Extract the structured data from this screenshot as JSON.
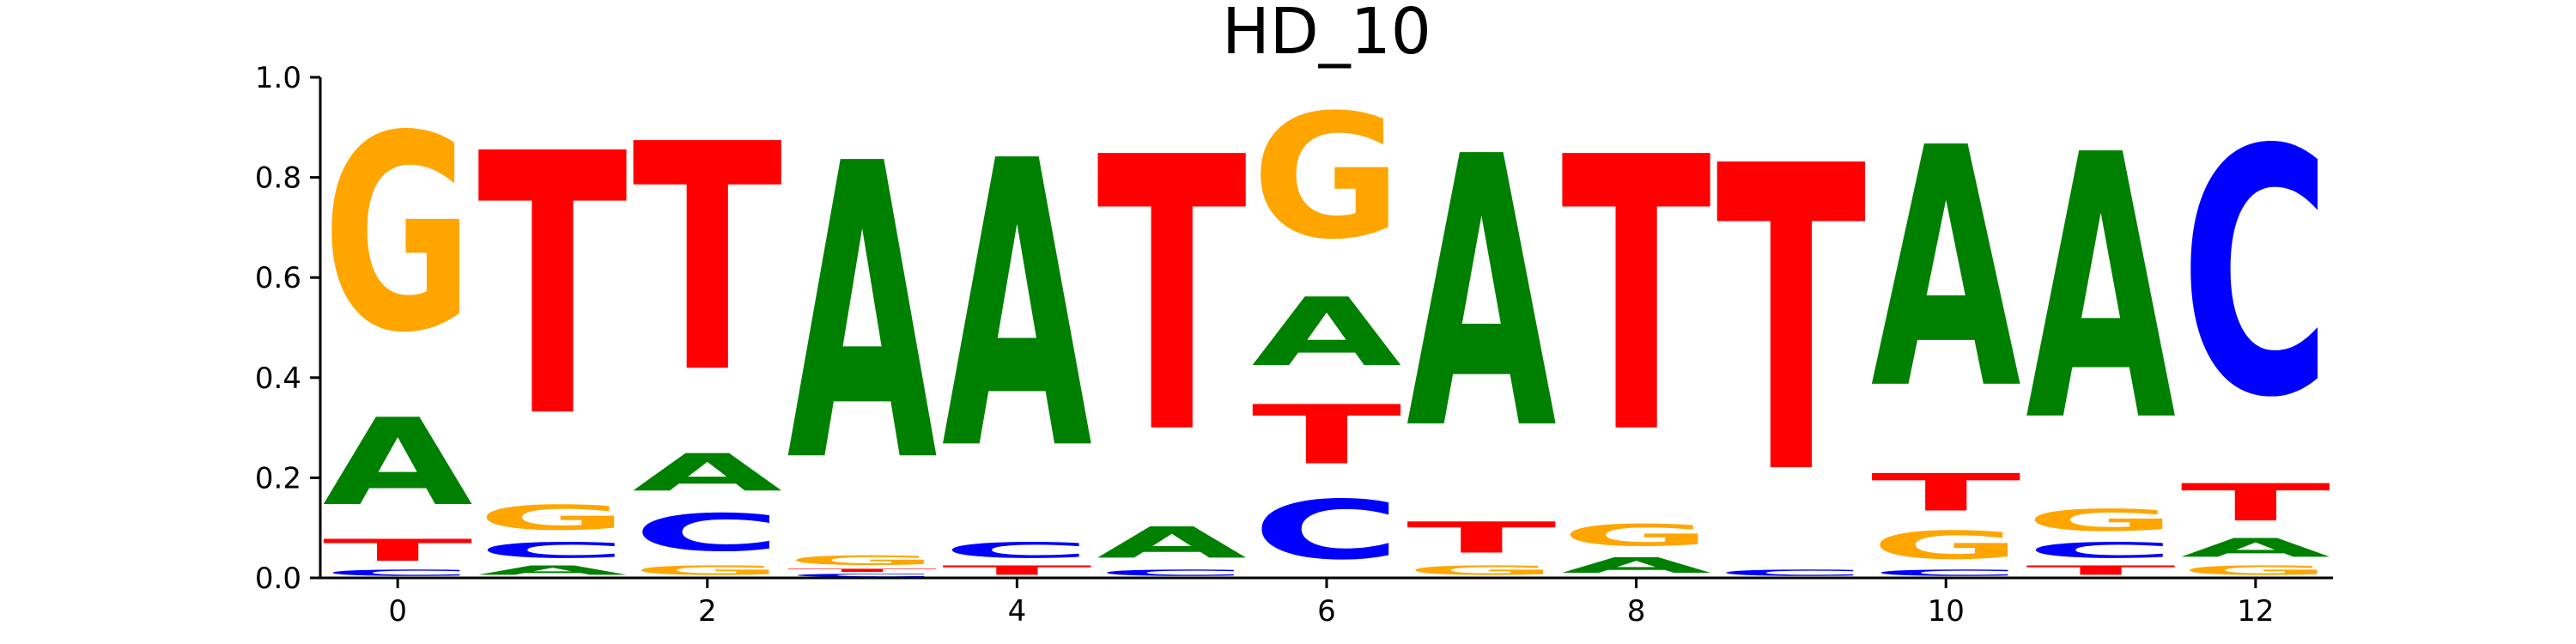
{
  "chart_data": {
    "type": "sequence-logo",
    "title": "HD_10",
    "xlabel": "",
    "ylabel": "",
    "ylim": [
      0,
      1.0
    ],
    "xlim": [
      -0.5,
      12.5
    ],
    "x_ticks": [
      0,
      2,
      4,
      6,
      8,
      10,
      12
    ],
    "y_ticks": [
      0.0,
      0.2,
      0.4,
      0.6,
      0.8,
      1.0
    ],
    "x_tick_labels": [
      "0",
      "2",
      "4",
      "6",
      "8",
      "10",
      "12"
    ],
    "y_tick_labels": [
      "0.0",
      "0.2",
      "0.4",
      "0.6",
      "0.8",
      "1.0"
    ],
    "colors": {
      "A": "#008000",
      "C": "#0000ff",
      "G": "#ffa500",
      "T": "#ff0000"
    },
    "positions": [
      {
        "pos": 0,
        "stack": [
          [
            "C",
            0.02
          ],
          [
            "T",
            0.07
          ],
          [
            "A",
            0.28
          ],
          [
            "G",
            0.63
          ]
        ]
      },
      {
        "pos": 1,
        "stack": [
          [
            "A",
            0.03
          ],
          [
            "C",
            0.05
          ],
          [
            "G",
            0.08
          ],
          [
            "T",
            0.84
          ]
        ]
      },
      {
        "pos": 2,
        "stack": [
          [
            "G",
            0.03
          ],
          [
            "C",
            0.12
          ],
          [
            "A",
            0.12
          ],
          [
            "T",
            0.73
          ]
        ]
      },
      {
        "pos": 3,
        "stack": [
          [
            "C",
            0.01
          ],
          [
            "T",
            0.01
          ],
          [
            "G",
            0.03
          ],
          [
            "A",
            0.95
          ]
        ]
      },
      {
        "pos": 4,
        "stack": [
          [
            "T",
            0.03
          ],
          [
            "C",
            0.05
          ],
          [
            "A",
            0.92
          ]
        ]
      },
      {
        "pos": 5,
        "stack": [
          [
            "C",
            0.02
          ],
          [
            "A",
            0.1
          ],
          [
            "T",
            0.88
          ]
        ]
      },
      {
        "pos": 6,
        "stack": [
          [
            "C",
            0.19
          ],
          [
            "T",
            0.19
          ],
          [
            "A",
            0.22
          ],
          [
            "G",
            0.4
          ]
        ]
      },
      {
        "pos": 7,
        "stack": [
          [
            "G",
            0.03
          ],
          [
            "T",
            0.1
          ],
          [
            "A",
            0.87
          ]
        ]
      },
      {
        "pos": 8,
        "stack": [
          [
            "A",
            0.05
          ],
          [
            "G",
            0.07
          ],
          [
            "T",
            0.88
          ]
        ]
      },
      {
        "pos": 9,
        "stack": [
          [
            "C",
            0.02
          ],
          [
            "T",
            0.98
          ]
        ]
      },
      {
        "pos": 10,
        "stack": [
          [
            "C",
            0.02
          ],
          [
            "G",
            0.09
          ],
          [
            "T",
            0.12
          ],
          [
            "A",
            0.77
          ]
        ]
      },
      {
        "pos": 11,
        "stack": [
          [
            "T",
            0.03
          ],
          [
            "C",
            0.05
          ],
          [
            "G",
            0.07
          ],
          [
            "A",
            0.85
          ]
        ]
      },
      {
        "pos": 12,
        "stack": [
          [
            "G",
            0.03
          ],
          [
            "A",
            0.06
          ],
          [
            "T",
            0.12
          ],
          [
            "C",
            0.79
          ]
        ]
      }
    ]
  }
}
